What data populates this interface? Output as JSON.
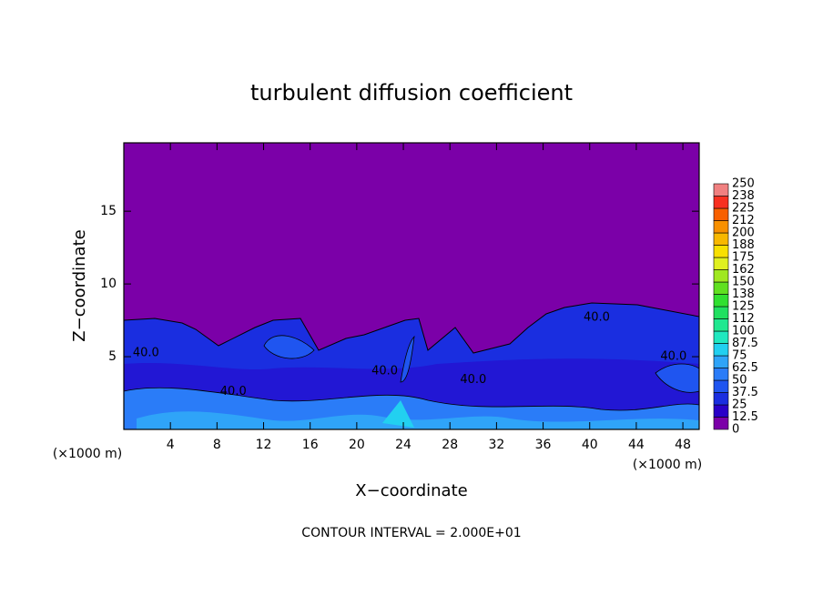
{
  "chart_data": {
    "type": "contour",
    "title": "turbulent diffusion coefficient",
    "x_label": "X−coordinate",
    "y_label": "Z−coordinate",
    "x_unit": "(×1000 m)",
    "y_unit": "(×1000 m)",
    "footer": "CONTOUR INTERVAL = 2.000E+01",
    "xlim": [
      0,
      49.4
    ],
    "xticks": [
      4,
      8,
      12,
      16,
      20,
      24,
      28,
      32,
      36,
      40,
      44,
      48
    ],
    "ylim": [
      0,
      19.7
    ],
    "yticks": [
      5,
      10,
      15
    ],
    "contour_labels": [
      {
        "x": 1.9,
        "y": 5.25,
        "label": "40.0"
      },
      {
        "x": 9.4,
        "y": 2.6,
        "label": "40.0"
      },
      {
        "x": 22.4,
        "y": 4.0,
        "label": "40.0"
      },
      {
        "x": 30.0,
        "y": 3.4,
        "label": "40.0"
      },
      {
        "x": 40.6,
        "y": 7.7,
        "label": "40.0"
      },
      {
        "x": 47.2,
        "y": 5.0,
        "label": "40.0"
      }
    ],
    "colorbar": {
      "ticks": [
        0,
        12.5,
        25,
        37.5,
        50,
        62.5,
        75,
        87.5,
        100,
        {
          "value": 112.5,
          "label": "112"
        },
        125,
        {
          "value": 137.5,
          "label": "138"
        },
        150,
        {
          "value": 162.5,
          "label": "162"
        },
        175,
        {
          "value": 187.5,
          "label": "188"
        },
        200,
        {
          "value": 212.5,
          "label": "212"
        },
        225,
        {
          "value": 237.5,
          "label": "238"
        },
        250
      ],
      "colors": [
        "#7b00a8",
        "#2a00c8",
        "#1a2ee0",
        "#1f55f0",
        "#2a7cf8",
        "#2fa4f8",
        "#22d0f0",
        "#20e8c0",
        "#20e890",
        "#20e060",
        "#30e030",
        "#60e020",
        "#a0e820",
        "#e0f020",
        "#f8e000",
        "#f8b800",
        "#f89000",
        "#f86000",
        "#f83020",
        "#f08080"
      ]
    }
  }
}
